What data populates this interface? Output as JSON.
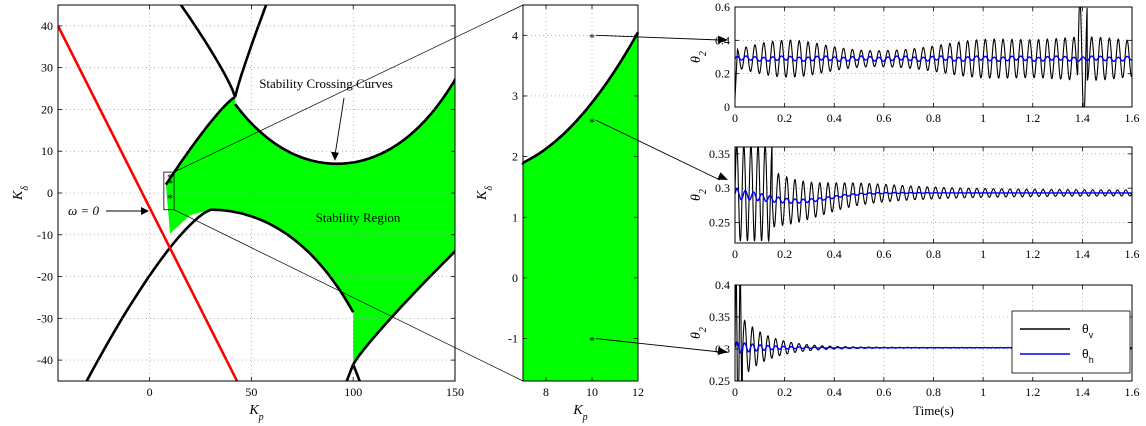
{
  "chart_data": [
    {
      "id": "main",
      "type": "region",
      "xlabel": "K_p",
      "ylabel": "K_δ",
      "xlim": [
        -45,
        150
      ],
      "ylim": [
        -45,
        45
      ],
      "xticks": [
        0,
        50,
        100,
        150
      ],
      "yticks": [
        -40,
        -30,
        -20,
        -10,
        0,
        10,
        20,
        30,
        40
      ],
      "grid": true,
      "colors": {
        "region": "#00ff00",
        "curve": "#000000",
        "line": "#ff0000"
      },
      "annotations": [
        {
          "text": "Stability Crossing Curves",
          "target": [
            92,
            7
          ]
        },
        {
          "text": "Stability Region"
        },
        {
          "text": "ω = 0",
          "target": [
            10,
            -2
          ]
        }
      ],
      "zoom_box": {
        "x": [
          7,
          12
        ],
        "y": [
          -4,
          5
        ]
      }
    },
    {
      "id": "zoom",
      "type": "region",
      "xlabel": "K_p",
      "ylabel": "K_δ",
      "xlim": [
        7,
        12
      ],
      "ylim": [
        -1.7,
        4.5
      ],
      "xticks": [
        8,
        10,
        12
      ],
      "yticks": [
        -1,
        0,
        1,
        2,
        3,
        4
      ],
      "grid": true,
      "boundary": {
        "x": [
          7,
          8,
          9,
          10,
          11,
          12
        ],
        "y": [
          1.9,
          2.08,
          2.3,
          2.6,
          2.98,
          3.4
        ]
      },
      "points": [
        {
          "x": 10,
          "y": 4
        },
        {
          "x": 10,
          "y": 2.6
        },
        {
          "x": 10,
          "y": -1
        }
      ]
    },
    {
      "id": "ts1",
      "type": "line",
      "ylabel": "θ_2",
      "xlim": [
        0,
        1.6
      ],
      "ylim": [
        0,
        0.6
      ],
      "xticks": [
        "0",
        "0.2",
        "0.4",
        "0.6",
        "0.8",
        "1",
        "1.2",
        "1.4",
        "1.6"
      ],
      "yticks": [
        "0",
        "0.2",
        "0.4",
        "0.6"
      ],
      "grid": true,
      "response": "growing oscillation",
      "mean": 0.29
    },
    {
      "id": "ts2",
      "type": "line",
      "ylabel": "θ_2",
      "xlim": [
        0,
        1.6
      ],
      "ylim": [
        0.22,
        0.36
      ],
      "xticks": [
        "0",
        "0.2",
        "0.4",
        "0.6",
        "0.8",
        "1",
        "1.2",
        "1.4",
        "1.6"
      ],
      "yticks": [
        "0.25",
        "0.3",
        "0.35"
      ],
      "grid": true,
      "response": "damped oscillation",
      "mean": 0.293
    },
    {
      "id": "ts3",
      "type": "line",
      "xlabel": "Time(s)",
      "ylabel": "θ_2",
      "xlim": [
        0,
        1.6
      ],
      "ylim": [
        0.25,
        0.4
      ],
      "xticks": [
        "0",
        "0.2",
        "0.4",
        "0.6",
        "0.8",
        "1",
        "1.2",
        "1.4",
        "1.6"
      ],
      "yticks": [
        "0.25",
        "0.3",
        "0.35",
        "0.4"
      ],
      "grid": true,
      "response": "fast damped oscillation",
      "mean": 0.302,
      "legend": [
        "θ_v",
        "θ_h"
      ],
      "legend_position": "top-right",
      "series_colors": [
        "#000000",
        "#0000ff"
      ]
    }
  ]
}
